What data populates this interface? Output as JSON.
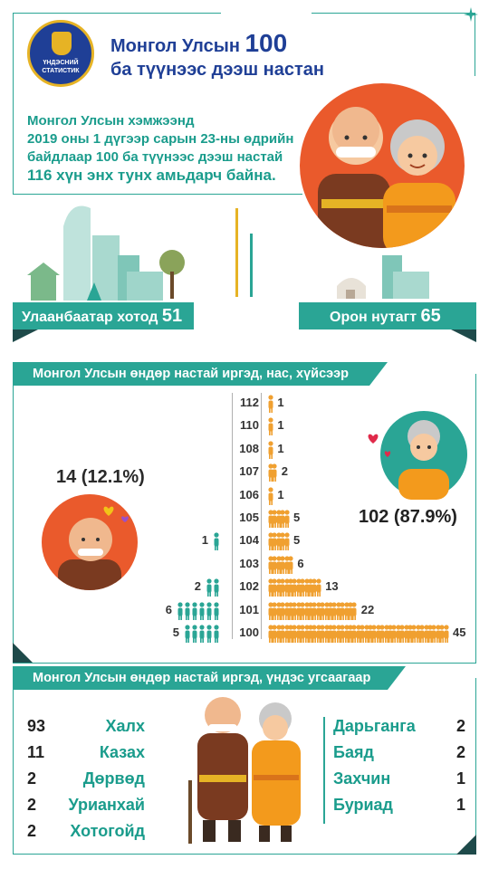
{
  "logo": {
    "text_line1": "ҮНДЭСНИЙ",
    "text_line2": "СТАТИСТИК"
  },
  "header": {
    "title_prefix": "Монгол Улсын",
    "title_number": "100",
    "title_line2": "ба түүнээс дээш настан"
  },
  "intro": {
    "line1": "Монгол Улсын хэмжээнд",
    "line2": "2019 оны 1 дүгээр сарын 23-ны өдрийн",
    "line3": "байдлаар 100  ба   түүнээс дээш настай",
    "line4": "116 хүн энх тунх амьдарч байна."
  },
  "location": {
    "ub_label": "Улаанбаатар хотод",
    "ub_value": "51",
    "rural_label": "Орон нутагт",
    "rural_value": "65"
  },
  "age_section": {
    "heading": "Монгол Улсын өндөр настай иргэд, нас, хүйсээр",
    "male_total": "14 (12.1%)",
    "female_total": "102 (87.9%)",
    "rows": [
      {
        "age": "112",
        "female": 1,
        "male": 0
      },
      {
        "age": "110",
        "female": 1,
        "male": 0
      },
      {
        "age": "108",
        "female": 1,
        "male": 0
      },
      {
        "age": "107",
        "female": 2,
        "male": 0
      },
      {
        "age": "106",
        "female": 1,
        "male": 0
      },
      {
        "age": "105",
        "female": 5,
        "male": 0
      },
      {
        "age": "104",
        "female": 5,
        "male": 1
      },
      {
        "age": "103",
        "female": 6,
        "male": 0
      },
      {
        "age": "102",
        "female": 13,
        "male": 2
      },
      {
        "age": "101",
        "female": 22,
        "male": 6
      },
      {
        "age": "100",
        "female": 45,
        "male": 5
      }
    ],
    "colors": {
      "female": "#f0a030",
      "male": "#2aa595"
    }
  },
  "ethnic_section": {
    "heading": "Монгол Улсын өндөр настай иргэд, үндэс угсаагаар",
    "left": [
      {
        "num": "93",
        "name": "Халх"
      },
      {
        "num": "11",
        "name": "Казах"
      },
      {
        "num": "2",
        "name": "Дөрвөд"
      },
      {
        "num": "2",
        "name": "Урианхай"
      },
      {
        "num": "2",
        "name": "Хотогойд"
      }
    ],
    "right": [
      {
        "name": "Дарьганга",
        "num": "2"
      },
      {
        "name": "Баяд",
        "num": "2"
      },
      {
        "name": "Захчин",
        "num": "1"
      },
      {
        "name": "Буриад",
        "num": "1"
      }
    ]
  }
}
